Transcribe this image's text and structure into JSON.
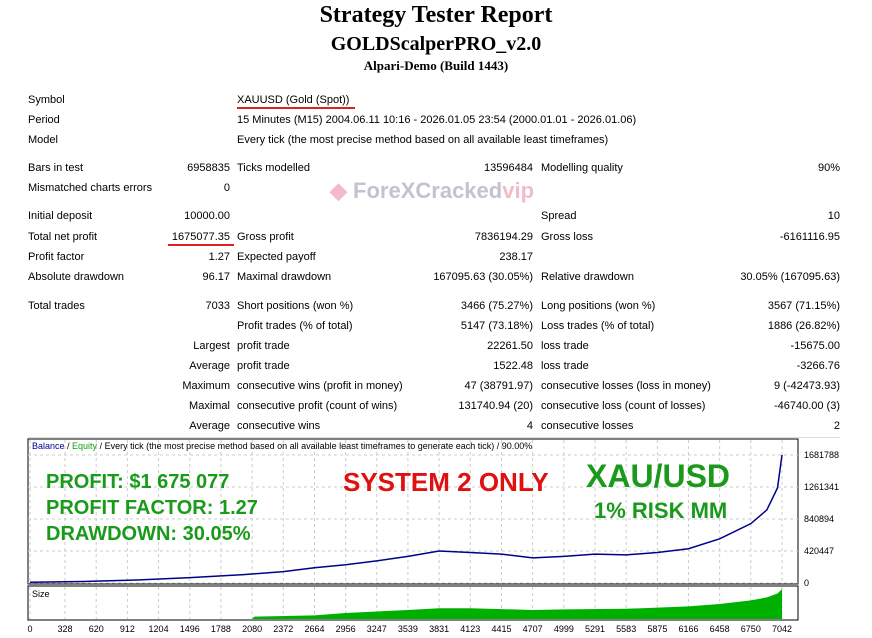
{
  "header": {
    "title": "Strategy Tester Report",
    "ea_name": "GOLDScalperPRO_v2.0",
    "server": "Alpari-Demo (Build 1443)"
  },
  "watermark": "ForexCrackedvip",
  "info": [
    {
      "label": "Symbol",
      "value": "XAUUSD (Gold (Spot))"
    },
    {
      "label": "Period",
      "value": "15 Minutes (M15) 2004.06.11 10:16 - 2026.01.05 23:54 (2000.01.01 - 2026.01.06)"
    },
    {
      "label": "Model",
      "value": "Every tick (the most precise method based on all available least timeframes)"
    }
  ],
  "stats": {
    "bars_label": "Bars in test",
    "bars": "6958835",
    "ticks_label": "Ticks modelled",
    "ticks": "13596484",
    "quality_label": "Modelling quality",
    "quality": "90%",
    "mismatch_label": "Mismatched charts errors",
    "mismatch": "0",
    "deposit_label": "Initial deposit",
    "deposit": "10000.00",
    "spread_label": "Spread",
    "spread": "10",
    "net_label": "Total net profit",
    "net": "1675077.35",
    "gp_label": "Gross profit",
    "gp": "7836194.29",
    "gl_label": "Gross loss",
    "gl": "-6161116.95",
    "pf_label": "Profit factor",
    "pf": "1.27",
    "ep_label": "Expected payoff",
    "ep": "238.17",
    "ad_label": "Absolute drawdown",
    "ad": "96.17",
    "md_label": "Maximal drawdown",
    "md": "167095.63 (30.05%)",
    "rd_label": "Relative drawdown",
    "rd": "30.05% (167095.63)",
    "tt_label": "Total trades",
    "tt": "7033",
    "sp_label": "Short positions (won %)",
    "sp": "3466 (75.27%)",
    "lp_label": "Long positions (won %)",
    "lp": "3567 (71.15%)"
  },
  "trade_rows": [
    {
      "pre": "",
      "l1": "Profit trades (% of total)",
      "v1": "5147 (73.18%)",
      "l2": "Loss trades (% of total)",
      "v2": "1886 (26.82%)"
    },
    {
      "pre": "Largest",
      "l1": "profit trade",
      "v1": "22261.50",
      "l2": "loss trade",
      "v2": "-15675.00"
    },
    {
      "pre": "Average",
      "l1": "profit trade",
      "v1": "1522.48",
      "l2": "loss trade",
      "v2": "-3266.76"
    },
    {
      "pre": "Maximum",
      "l1": "consecutive wins (profit in money)",
      "v1": "47 (38791.97)",
      "l2": "consecutive losses (loss in money)",
      "v2": "9 (-42473.93)"
    },
    {
      "pre": "Maximal",
      "l1": "consecutive profit (count of wins)",
      "v1": "131740.94 (20)",
      "l2": "consecutive loss (count of losses)",
      "v2": "-46740.00 (3)"
    },
    {
      "pre": "Average",
      "l1": "consecutive wins",
      "v1": "4",
      "l2": "consecutive losses",
      "v2": "2"
    }
  ],
  "chart_legend": {
    "balance": "Balance",
    "sep1": " / ",
    "equity": "Equity",
    "rest": " / Every tick (the most precise method based on all available least timeframes to generate each tick) / 90.00%"
  },
  "overlay": {
    "profit": "PROFIT: $1 675 077",
    "pf": "PROFIT FACTOR: 1.27",
    "dd": "DRAWDOWN: 30.05%",
    "system": "SYSTEM 2 ONLY",
    "pair": "XAU/USD",
    "risk": "1% RISK MM"
  },
  "colors": {
    "balance": "#00008b",
    "equity": "#10a010",
    "size": "#00b000",
    "overlay_green": "#1a9a1a",
    "overlay_red": "#e01010",
    "underline": "#e02020"
  },
  "chart_data": {
    "type": "line",
    "y_ticks": [
      0,
      420447,
      840894,
      1261341,
      1681788
    ],
    "x_ticks": [
      0,
      328,
      620,
      912,
      1204,
      1496,
      1788,
      2080,
      2372,
      2664,
      2956,
      3247,
      3539,
      3831,
      4123,
      4415,
      4707,
      4999,
      5291,
      5583,
      5875,
      6166,
      6458,
      6750,
      7042
    ],
    "xlim": [
      0,
      7042
    ],
    "ylim": [
      0,
      1681788
    ],
    "balance": {
      "x": [
        0,
        500,
        1000,
        1500,
        2000,
        2372,
        2664,
        2956,
        3247,
        3539,
        3831,
        4123,
        4415,
        4707,
        4999,
        5291,
        5583,
        5875,
        6166,
        6458,
        6750,
        6900,
        7000,
        7042
      ],
      "y": [
        10000,
        20000,
        40000,
        70000,
        110000,
        150000,
        200000,
        240000,
        290000,
        350000,
        420000,
        400000,
        380000,
        330000,
        350000,
        380000,
        370000,
        400000,
        450000,
        580000,
        780000,
        960000,
        1250000,
        1681788
      ]
    },
    "size_panel": {
      "label": "Size",
      "x": [
        0,
        2080,
        2100,
        2664,
        2956,
        3539,
        3831,
        4123,
        4415,
        4707,
        4999,
        5583,
        5875,
        6166,
        6458,
        6750,
        6900,
        7000,
        7042
      ],
      "y": [
        0,
        0,
        0.08,
        0.12,
        0.2,
        0.3,
        0.36,
        0.36,
        0.33,
        0.3,
        0.32,
        0.34,
        0.38,
        0.42,
        0.5,
        0.62,
        0.72,
        0.85,
        1.0
      ]
    }
  }
}
